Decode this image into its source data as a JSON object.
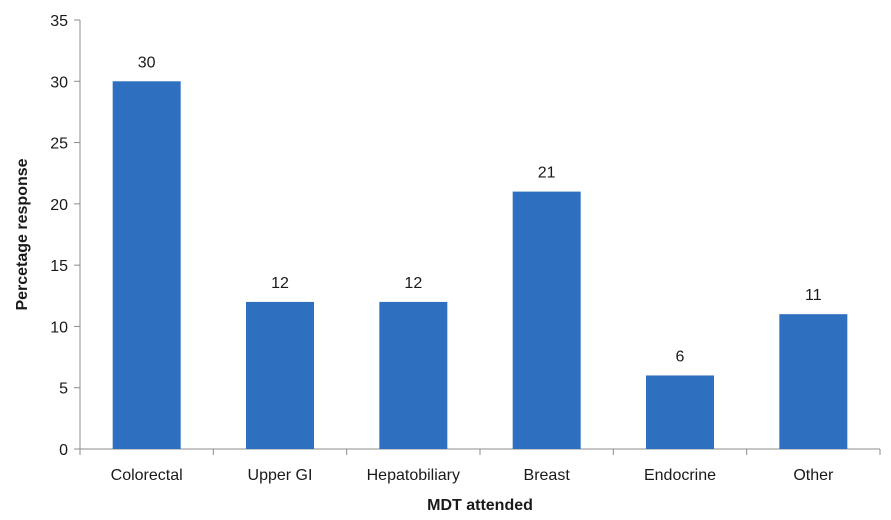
{
  "chart_data": {
    "type": "bar",
    "categories": [
      "Colorectal",
      "Upper GI",
      "Hepatobiliary",
      "Breast",
      "Endocrine",
      "Other"
    ],
    "values": [
      30,
      12,
      12,
      21,
      6,
      11
    ],
    "data_labels": [
      "30",
      "12",
      "12",
      "21",
      "6",
      "11"
    ],
    "title": "",
    "xlabel": "MDT attended",
    "ylabel": "Percetage response",
    "ylim": [
      0,
      35
    ],
    "yticks": [
      0,
      5,
      10,
      15,
      20,
      25,
      30,
      35
    ],
    "grid": false,
    "legend": "none",
    "bar_color": "#2e6fbf",
    "axis_color": "#8c8c8c"
  }
}
